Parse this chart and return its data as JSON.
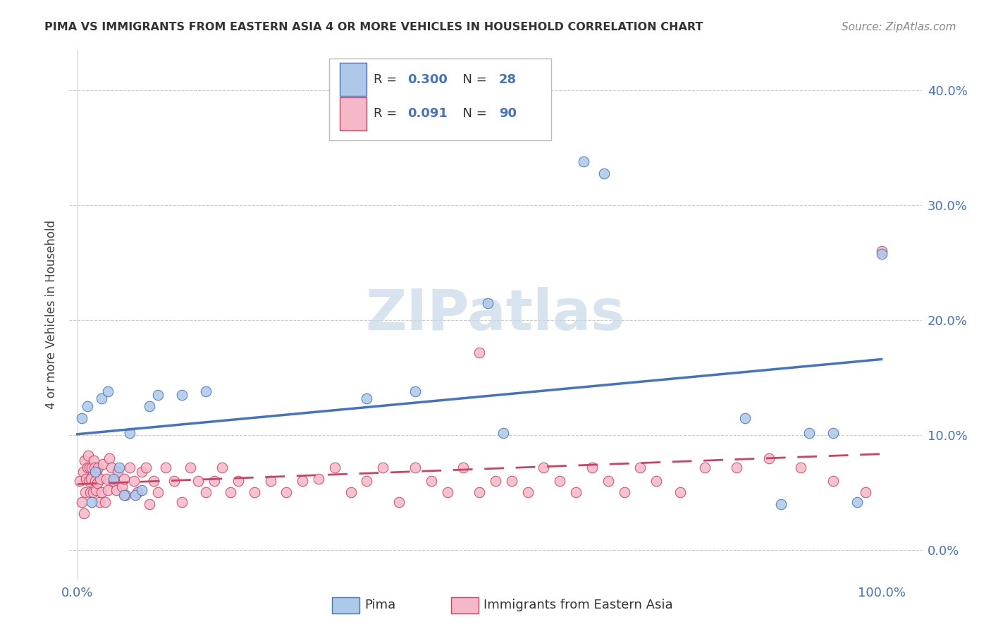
{
  "title": "PIMA VS IMMIGRANTS FROM EASTERN ASIA 4 OR MORE VEHICLES IN HOUSEHOLD CORRELATION CHART",
  "source": "Source: ZipAtlas.com",
  "ylabel": "4 or more Vehicles in Household",
  "pima_R": 0.3,
  "pima_N": 28,
  "immigrants_R": 0.091,
  "immigrants_N": 90,
  "pima_color": "#adc8e8",
  "pima_line_color": "#4472c4",
  "immigrants_color": "#f4b8c8",
  "immigrants_line_color": "#d04060",
  "background_color": "#ffffff",
  "grid_color": "#cccccc",
  "yticks": [
    0.0,
    0.1,
    0.2,
    0.3,
    0.4
  ],
  "ytick_labels": [
    "0.0%",
    "10.0%",
    "20.0%",
    "30.0%",
    "40.0%"
  ],
  "xlim": [
    -0.01,
    1.05
  ],
  "ylim": [
    -0.025,
    0.435
  ],
  "legend_pima_label": "Pima",
  "legend_immigrants_label": "Immigrants from Eastern Asia",
  "watermark_text": "ZIPatlas",
  "watermark_color": "#c8d8ea",
  "pima_x": [
    0.005,
    0.012,
    0.018,
    0.022,
    0.03,
    0.038,
    0.045,
    0.052,
    0.058,
    0.065,
    0.072,
    0.08,
    0.09,
    0.1,
    0.13,
    0.16,
    0.36,
    0.42,
    0.51,
    0.53,
    0.63,
    0.655,
    0.83,
    0.875,
    0.91,
    0.94,
    0.97,
    1.0
  ],
  "pima_y": [
    0.115,
    0.125,
    0.042,
    0.068,
    0.132,
    0.138,
    0.062,
    0.072,
    0.048,
    0.102,
    0.048,
    0.052,
    0.125,
    0.135,
    0.135,
    0.138,
    0.132,
    0.138,
    0.215,
    0.102,
    0.338,
    0.328,
    0.115,
    0.04,
    0.102,
    0.102,
    0.042,
    0.258
  ],
  "imm_x": [
    0.003,
    0.005,
    0.007,
    0.008,
    0.009,
    0.01,
    0.011,
    0.012,
    0.013,
    0.014,
    0.015,
    0.016,
    0.017,
    0.018,
    0.019,
    0.02,
    0.021,
    0.022,
    0.023,
    0.024,
    0.025,
    0.026,
    0.027,
    0.028,
    0.03,
    0.032,
    0.034,
    0.036,
    0.038,
    0.04,
    0.042,
    0.045,
    0.048,
    0.05,
    0.055,
    0.058,
    0.06,
    0.065,
    0.07,
    0.075,
    0.08,
    0.085,
    0.09,
    0.095,
    0.1,
    0.11,
    0.12,
    0.13,
    0.14,
    0.15,
    0.16,
    0.17,
    0.18,
    0.19,
    0.2,
    0.22,
    0.24,
    0.26,
    0.28,
    0.3,
    0.32,
    0.34,
    0.36,
    0.38,
    0.4,
    0.42,
    0.44,
    0.46,
    0.48,
    0.5,
    0.52,
    0.54,
    0.56,
    0.58,
    0.6,
    0.62,
    0.64,
    0.66,
    0.68,
    0.7,
    0.72,
    0.75,
    0.78,
    0.82,
    0.86,
    0.9,
    0.94,
    0.98,
    1.0,
    0.5
  ],
  "imm_y": [
    0.06,
    0.042,
    0.068,
    0.032,
    0.078,
    0.05,
    0.062,
    0.072,
    0.082,
    0.06,
    0.072,
    0.05,
    0.062,
    0.072,
    0.05,
    0.078,
    0.072,
    0.06,
    0.052,
    0.068,
    0.058,
    0.072,
    0.042,
    0.062,
    0.05,
    0.075,
    0.042,
    0.062,
    0.052,
    0.08,
    0.072,
    0.06,
    0.052,
    0.068,
    0.055,
    0.062,
    0.048,
    0.072,
    0.06,
    0.05,
    0.068,
    0.072,
    0.04,
    0.06,
    0.05,
    0.072,
    0.06,
    0.042,
    0.072,
    0.06,
    0.05,
    0.06,
    0.072,
    0.05,
    0.06,
    0.05,
    0.06,
    0.05,
    0.06,
    0.062,
    0.072,
    0.05,
    0.06,
    0.072,
    0.042,
    0.072,
    0.06,
    0.05,
    0.072,
    0.05,
    0.06,
    0.06,
    0.05,
    0.072,
    0.06,
    0.05,
    0.072,
    0.06,
    0.05,
    0.072,
    0.06,
    0.05,
    0.072,
    0.072,
    0.08,
    0.072,
    0.06,
    0.05,
    0.26,
    0.172
  ]
}
